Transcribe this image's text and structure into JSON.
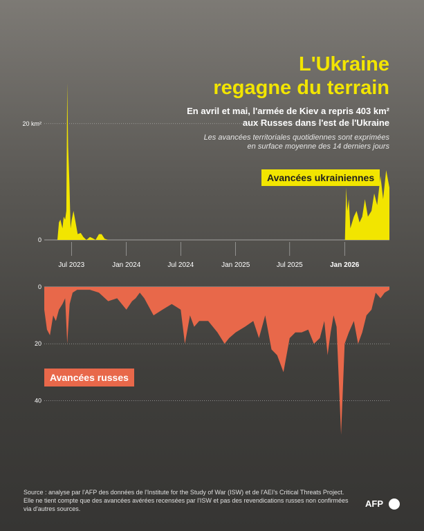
{
  "title_line1": "L'Ukraine",
  "title_line2": "regagne du terrain",
  "subtitle_line1": "En avril et mai, l'armée de Kiev a repris 403 km²",
  "subtitle_line2": "aux Russes dans l'est de l'Ukraine",
  "note_line1": "Les avancées territoriales quotidiennes sont exprimées",
  "note_line2": "en surface moyenne des 14 derniers jours",
  "source_line1": "Source : analyse par l'AFP des données de l'Institute for the Study of War (ISW) et de l'AEI's Critical Threats Project.",
  "source_line2": "Elle ne tient compte que des avancées avérées recensées par l'ISW et pas des revendications russes non confirmées",
  "source_line3": "via d'autres sources.",
  "logo": "AFP",
  "colors": {
    "ukraine": "#f2e500",
    "russia": "#e8684a",
    "grid": "#bdbdbd"
  },
  "chart_data": [
    {
      "type": "area",
      "legend": "Avancées ukrainiennes",
      "color": "#f2e500",
      "ylim": [
        0,
        27
      ],
      "yticks": [
        {
          "value": 0,
          "label": "0"
        },
        {
          "value": 20,
          "label": "20 km²"
        }
      ],
      "x": [
        "2023-05-15",
        "2023-05-20",
        "2023-05-25",
        "2023-06-01",
        "2023-06-05",
        "2023-06-10",
        "2023-06-14",
        "2023-06-17",
        "2023-06-20",
        "2023-06-24",
        "2023-06-28",
        "2023-07-02",
        "2023-07-08",
        "2023-07-15",
        "2023-07-22",
        "2023-08-01",
        "2023-08-10",
        "2023-08-20",
        "2023-09-01",
        "2023-09-10",
        "2023-09-20",
        "2023-10-01",
        "2023-10-10",
        "2023-10-20",
        "2023-11-01",
        "2025-12-20",
        "2026-01-02",
        "2026-01-06",
        "2026-01-10",
        "2026-01-15",
        "2026-01-20",
        "2026-02-01",
        "2026-02-10",
        "2026-02-20",
        "2026-03-01",
        "2026-03-10",
        "2026-03-20",
        "2026-04-01",
        "2026-04-10",
        "2026-04-20",
        "2026-05-01",
        "2026-05-10",
        "2026-05-20",
        "2026-05-31"
      ],
      "values": [
        0,
        3,
        3.5,
        2,
        4,
        3.5,
        5,
        27,
        16,
        10,
        2,
        3.5,
        5,
        3,
        1,
        1.2,
        0.5,
        0,
        0.5,
        0.3,
        0,
        1,
        1,
        0.2,
        0,
        0,
        0,
        9,
        5,
        7,
        2,
        4,
        5,
        3,
        4,
        7,
        4,
        5,
        8,
        6,
        11,
        7,
        12,
        9
      ]
    },
    {
      "type": "area",
      "legend": "Avancées russes",
      "color": "#e8684a",
      "ylim": [
        0,
        45
      ],
      "yticks": [
        {
          "value": 0,
          "label": "0"
        },
        {
          "value": 20,
          "label": "20"
        },
        {
          "value": 40,
          "label": "40"
        }
      ],
      "x": [
        "2023-04-01",
        "2023-04-10",
        "2023-04-20",
        "2023-05-01",
        "2023-05-10",
        "2023-05-20",
        "2023-06-01",
        "2023-06-10",
        "2023-06-17",
        "2023-06-25",
        "2023-07-05",
        "2023-07-20",
        "2023-08-01",
        "2023-09-01",
        "2023-10-01",
        "2023-11-01",
        "2023-12-01",
        "2024-01-01",
        "2024-01-20",
        "2024-02-01",
        "2024-02-15",
        "2024-03-01",
        "2024-04-01",
        "2024-05-01",
        "2024-06-01",
        "2024-07-01",
        "2024-07-15",
        "2024-08-01",
        "2024-08-15",
        "2024-09-01",
        "2024-10-01",
        "2024-11-01",
        "2024-11-25",
        "2024-12-10",
        "2025-01-01",
        "2025-02-01",
        "2025-03-01",
        "2025-03-20",
        "2025-04-10",
        "2025-05-01",
        "2025-05-20",
        "2025-06-10",
        "2025-07-01",
        "2025-07-20",
        "2025-08-10",
        "2025-09-01",
        "2025-09-20",
        "2025-10-10",
        "2025-10-25",
        "2025-11-05",
        "2025-11-15",
        "2025-11-25",
        "2025-12-05",
        "2025-12-20",
        "2026-01-01",
        "2026-01-15",
        "2026-02-01",
        "2026-02-15",
        "2026-03-01",
        "2026-03-15",
        "2026-04-01",
        "2026-04-15",
        "2026-05-01",
        "2026-05-15",
        "2026-05-31"
      ],
      "values": [
        8,
        15,
        17,
        10,
        12,
        8,
        6,
        4,
        20,
        6,
        2,
        1,
        1,
        1,
        2,
        5,
        4,
        8,
        5,
        4,
        2,
        4,
        10,
        8,
        6,
        8,
        20,
        10,
        14,
        12,
        12,
        16,
        20,
        18,
        16,
        14,
        12,
        18,
        10,
        22,
        24,
        30,
        18,
        16,
        16,
        15,
        20,
        18,
        12,
        24,
        16,
        10,
        14,
        52,
        20,
        16,
        12,
        20,
        16,
        10,
        8,
        2,
        4,
        2,
        1
      ]
    }
  ],
  "x_axis": {
    "labels": [
      {
        "date": "2023-07-01",
        "label": "Jul 2023",
        "bold": false
      },
      {
        "date": "2024-01-01",
        "label": "Jan 2024",
        "bold": false
      },
      {
        "date": "2024-07-01",
        "label": "Jul 2024",
        "bold": false
      },
      {
        "date": "2025-01-01",
        "label": "Jan 2025",
        "bold": false
      },
      {
        "date": "2025-07-01",
        "label": "Jul 2025",
        "bold": false
      },
      {
        "date": "2026-01-01",
        "label": "Jan 2026",
        "bold": true
      }
    ],
    "start": "2023-04-01",
    "end": "2026-05-31"
  }
}
